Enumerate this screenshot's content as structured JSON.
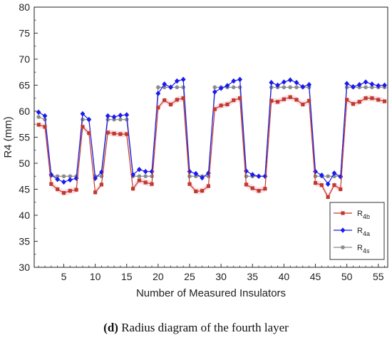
{
  "caption": {
    "label": "(d)",
    "text": " Radius diagram of the fourth layer"
  },
  "chart_data": {
    "type": "line",
    "title": "",
    "xlabel": "Number of Measured Insulators",
    "ylabel": "R4 (mm)",
    "xlim": [
      0.3,
      56.5
    ],
    "ylim": [
      30,
      80
    ],
    "x_ticks": [
      5,
      10,
      15,
      20,
      25,
      30,
      35,
      40,
      45,
      50,
      55
    ],
    "y_ticks": [
      30,
      35,
      40,
      45,
      50,
      55,
      60,
      65,
      70,
      75,
      80
    ],
    "grid": false,
    "legend_position": "bottom-right",
    "x": [
      1,
      2,
      3,
      4,
      5,
      6,
      7,
      8,
      9,
      10,
      11,
      12,
      13,
      14,
      15,
      16,
      17,
      18,
      19,
      20,
      21,
      22,
      23,
      24,
      25,
      26,
      27,
      28,
      29,
      30,
      31,
      32,
      33,
      34,
      35,
      36,
      37,
      38,
      39,
      40,
      41,
      42,
      43,
      44,
      45,
      46,
      47,
      48,
      49,
      50,
      51,
      52,
      53,
      54,
      55,
      56
    ],
    "series": [
      {
        "name": "R4b",
        "name_base": "R",
        "name_sub": "4b",
        "color": "#c0392b",
        "marker": "square",
        "values": [
          57.4,
          57.0,
          46.0,
          45.0,
          44.3,
          44.7,
          44.9,
          57.0,
          55.8,
          44.4,
          45.9,
          55.9,
          55.7,
          55.6,
          55.6,
          45.1,
          46.7,
          46.3,
          46.0,
          60.7,
          62.1,
          61.3,
          62.2,
          62.5,
          46.0,
          44.6,
          44.7,
          45.6,
          60.4,
          61.1,
          61.3,
          62.1,
          62.5,
          45.9,
          45.2,
          44.7,
          45.1,
          62.0,
          61.8,
          62.3,
          62.7,
          62.2,
          61.3,
          62.0,
          46.2,
          45.8,
          43.5,
          45.8,
          45.0,
          62.2,
          61.4,
          61.8,
          62.5,
          62.5,
          62.2,
          61.9
        ]
      },
      {
        "name": "R4a",
        "name_base": "R",
        "name_sub": "4a",
        "color": "#1a1aee",
        "marker": "diamond",
        "values": [
          59.8,
          59.1,
          47.8,
          46.9,
          46.4,
          46.8,
          47.1,
          59.5,
          58.4,
          47.1,
          48.3,
          59.1,
          58.9,
          59.2,
          59.3,
          47.8,
          48.8,
          48.4,
          48.4,
          63.4,
          65.2,
          64.6,
          65.8,
          66.1,
          48.4,
          48.0,
          47.2,
          48.1,
          63.7,
          64.4,
          64.9,
          65.8,
          66.1,
          48.5,
          47.8,
          47.5,
          47.5,
          65.5,
          65.0,
          65.6,
          66.0,
          65.5,
          64.7,
          65.1,
          48.4,
          47.7,
          46.0,
          48.1,
          47.4,
          65.3,
          64.7,
          65.1,
          65.6,
          65.2,
          64.9,
          65.0
        ]
      },
      {
        "name": "R4s",
        "name_base": "R",
        "name_sub": "4s",
        "color": "#8c8c8c",
        "marker": "circle",
        "values": [
          58.9,
          58.4,
          47.6,
          47.5,
          47.5,
          47.5,
          47.5,
          58.4,
          58.4,
          47.5,
          47.5,
          58.4,
          58.4,
          58.4,
          58.4,
          47.5,
          47.5,
          47.5,
          47.5,
          64.6,
          64.6,
          64.6,
          64.6,
          64.6,
          47.5,
          47.5,
          47.5,
          47.5,
          64.6,
          64.6,
          64.6,
          64.6,
          64.6,
          47.5,
          47.5,
          47.5,
          47.5,
          64.6,
          64.6,
          64.6,
          64.6,
          64.6,
          64.6,
          64.6,
          47.5,
          47.5,
          47.5,
          47.5,
          47.5,
          64.6,
          64.6,
          64.6,
          64.6,
          64.6,
          64.6,
          64.6
        ]
      }
    ]
  }
}
